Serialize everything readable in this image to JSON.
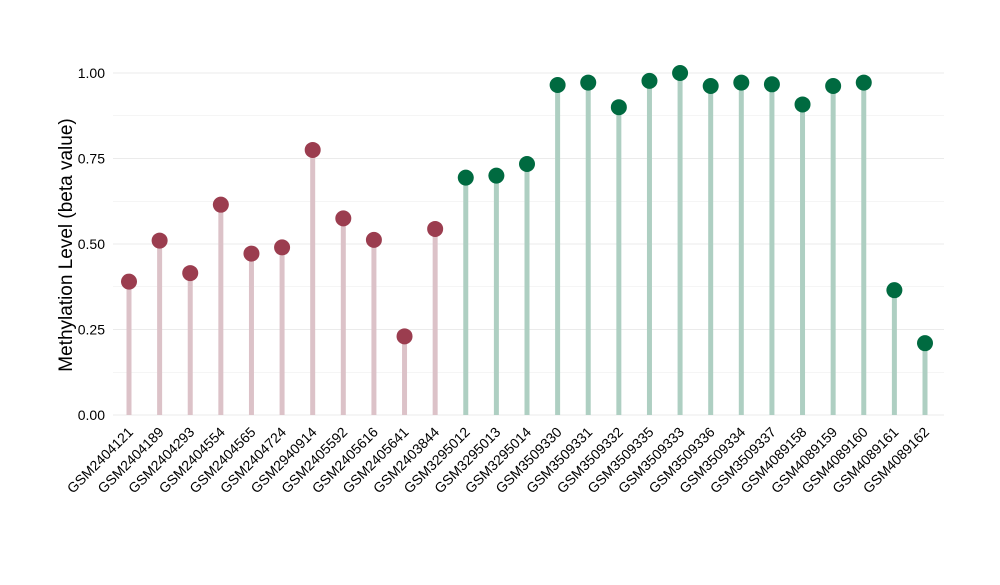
{
  "chart_data": {
    "type": "lollipop",
    "title": "",
    "xlabel": "",
    "ylabel": "Methylation Level (beta value)",
    "ylim": [
      0,
      1
    ],
    "yticks": [
      0,
      0.25,
      0.5,
      0.75,
      1.0
    ],
    "ytick_labels": [
      "0.00",
      "0.25",
      "0.50",
      "0.75",
      "1.00"
    ],
    "grid": true,
    "legend": "none",
    "colors": {
      "group_a_point": "#9b3d4f",
      "group_a_stem": "#dcc2c8",
      "group_b_point": "#006a40",
      "group_b_stem": "#aecfc2",
      "grid": "#ebebeb"
    },
    "categories": [
      "GSM2404121",
      "GSM2404189",
      "GSM2404293",
      "GSM2404554",
      "GSM2404565",
      "GSM2404724",
      "GSM2940914",
      "GSM2405592",
      "GSM2405616",
      "GSM2405641",
      "GSM2403844",
      "GSM3295012",
      "GSM3295013",
      "GSM3295014",
      "GSM3509330",
      "GSM3509331",
      "GSM3509332",
      "GSM3509335",
      "GSM3509333",
      "GSM3509336",
      "GSM3509334",
      "GSM3509337",
      "GSM4089158",
      "GSM4089159",
      "GSM4089160",
      "GSM4089161",
      "GSM4089162"
    ],
    "values": [
      0.39,
      0.51,
      0.415,
      0.615,
      0.472,
      0.49,
      0.775,
      0.575,
      0.512,
      0.23,
      0.544,
      0.694,
      0.7,
      0.734,
      0.965,
      0.972,
      0.9,
      0.977,
      1.0,
      0.962,
      0.972,
      0.967,
      0.908,
      0.962,
      0.972,
      0.365,
      0.21
    ],
    "groups": [
      "a",
      "a",
      "a",
      "a",
      "a",
      "a",
      "a",
      "a",
      "a",
      "a",
      "a",
      "b",
      "b",
      "b",
      "b",
      "b",
      "b",
      "b",
      "b",
      "b",
      "b",
      "b",
      "b",
      "b",
      "b",
      "b",
      "b"
    ]
  }
}
